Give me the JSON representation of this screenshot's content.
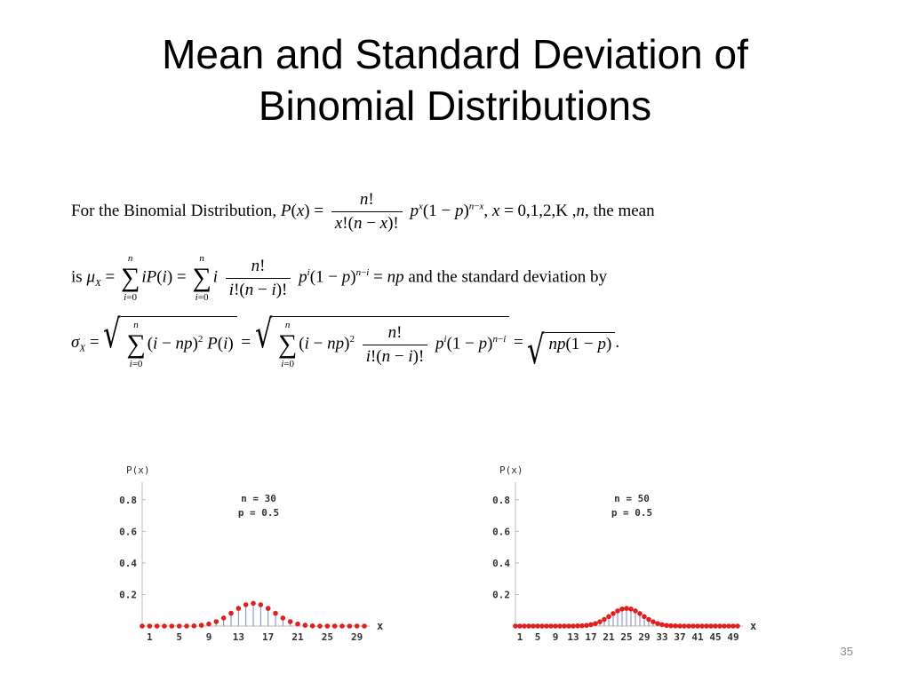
{
  "title": {
    "line1": "Mean and Standard Deviation of",
    "line2": "Binomial Distributions"
  },
  "formula": {
    "line1_prefix": "For the Binomial Distribution, ",
    "line1_suffix": ", the mean",
    "line2_prefix": "is ",
    "line2_middle": " and the standard deviation by"
  },
  "page_number": "35",
  "chart_data": [
    {
      "type": "scatter",
      "ylabel": "P(x)",
      "xlabel": "x",
      "annotation": [
        "n = 30",
        "p = 0.5"
      ],
      "n": 30,
      "p": 0.5,
      "ylim": [
        0,
        0.9
      ],
      "yticks": [
        "0.2",
        "0.4",
        "0.6",
        "0.8"
      ],
      "xticks": [
        "1",
        "5",
        "9",
        "13",
        "17",
        "21",
        "25",
        "29"
      ],
      "x": [
        0,
        1,
        2,
        3,
        4,
        5,
        6,
        7,
        8,
        9,
        10,
        11,
        12,
        13,
        14,
        15,
        16,
        17,
        18,
        19,
        20,
        21,
        22,
        23,
        24,
        25,
        26,
        27,
        28,
        29,
        30
      ],
      "values": [
        0,
        0,
        0,
        0,
        0,
        0,
        0,
        0.001,
        0.005,
        0.013,
        0.028,
        0.051,
        0.081,
        0.112,
        0.135,
        0.144,
        0.135,
        0.112,
        0.081,
        0.051,
        0.028,
        0.013,
        0.005,
        0.001,
        0,
        0,
        0,
        0,
        0,
        0,
        0
      ]
    },
    {
      "type": "scatter",
      "ylabel": "P(x)",
      "xlabel": "x",
      "annotation": [
        "n = 50",
        "p = 0.5"
      ],
      "n": 50,
      "p": 0.5,
      "ylim": [
        0,
        0.9
      ],
      "yticks": [
        "0.2",
        "0.4",
        "0.6",
        "0.8"
      ],
      "xticks": [
        "1",
        "5",
        "9",
        "13",
        "17",
        "21",
        "25",
        "29",
        "33",
        "37",
        "41",
        "45",
        "49"
      ],
      "x": [
        0,
        1,
        2,
        3,
        4,
        5,
        6,
        7,
        8,
        9,
        10,
        11,
        12,
        13,
        14,
        15,
        16,
        17,
        18,
        19,
        20,
        21,
        22,
        23,
        24,
        25,
        26,
        27,
        28,
        29,
        30,
        31,
        32,
        33,
        34,
        35,
        36,
        37,
        38,
        39,
        40,
        41,
        42,
        43,
        44,
        45,
        46,
        47,
        48,
        49,
        50
      ],
      "values": [
        0,
        0,
        0,
        0,
        0,
        0,
        0,
        0,
        0,
        0,
        0,
        0,
        0,
        0,
        0.001,
        0.002,
        0.004,
        0.009,
        0.016,
        0.027,
        0.042,
        0.06,
        0.079,
        0.096,
        0.108,
        0.112,
        0.108,
        0.096,
        0.079,
        0.06,
        0.042,
        0.027,
        0.016,
        0.009,
        0.004,
        0.002,
        0.001,
        0,
        0,
        0,
        0,
        0,
        0,
        0,
        0,
        0,
        0,
        0,
        0,
        0,
        0
      ]
    }
  ]
}
